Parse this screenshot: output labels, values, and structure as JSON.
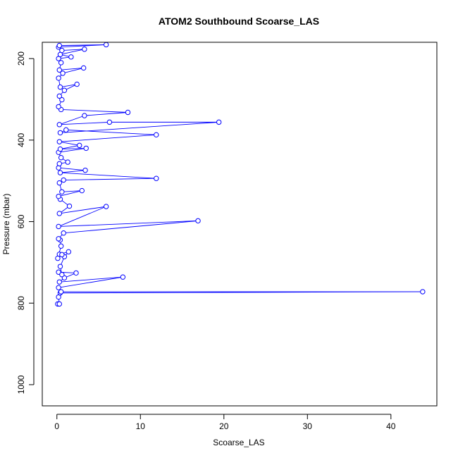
{
  "chart_data": {
    "type": "scatter",
    "title": "ATOM2 Southbound Scoarse_LAS",
    "xlabel": "Scoarse_LAS",
    "ylabel": "Pressure (mbar)",
    "xlim": [
      -1.75,
      45.5
    ],
    "ylim": [
      1052,
      160
    ],
    "y_reversed": true,
    "x_ticks": [
      0,
      10,
      20,
      30,
      40
    ],
    "x_tick_labels": [
      "0",
      "10",
      "20",
      "30",
      "40"
    ],
    "y_ticks": [
      200,
      400,
      600,
      800,
      1000
    ],
    "y_tick_labels": [
      "200",
      "400",
      "600",
      "800",
      "1000"
    ],
    "grid": false,
    "series": [
      {
        "color": "#0000ff",
        "marker": "open-circle",
        "connected": true,
        "points": [
          [
            0.1,
            802
          ],
          [
            0.3,
            802
          ],
          [
            0.2,
            785
          ],
          [
            0.4,
            775
          ],
          [
            43.8,
            772
          ],
          [
            0.5,
            772
          ],
          [
            0.2,
            762
          ],
          [
            7.9,
            736
          ],
          [
            0.3,
            748
          ],
          [
            0.9,
            738
          ],
          [
            2.3,
            726
          ],
          [
            0.2,
            724
          ],
          [
            0.6,
            730
          ],
          [
            0.4,
            710
          ],
          [
            0.9,
            686
          ],
          [
            1.4,
            674
          ],
          [
            0.3,
            680
          ],
          [
            0.6,
            681
          ],
          [
            0.1,
            690
          ],
          [
            0.5,
            660
          ],
          [
            0.4,
            645
          ],
          [
            0.2,
            642
          ],
          [
            0.8,
            628
          ],
          [
            16.9,
            598
          ],
          [
            0.2,
            612
          ],
          [
            5.9,
            563
          ],
          [
            0.3,
            580
          ],
          [
            1.5,
            562
          ],
          [
            0.4,
            545
          ],
          [
            0.2,
            538
          ],
          [
            3.0,
            524
          ],
          [
            0.6,
            527
          ],
          [
            0.3,
            505
          ],
          [
            0.8,
            498
          ],
          [
            11.9,
            494
          ],
          [
            0.4,
            480
          ],
          [
            3.4,
            474
          ],
          [
            0.2,
            468
          ],
          [
            0.3,
            458
          ],
          [
            1.3,
            454
          ],
          [
            0.5,
            443
          ],
          [
            0.2,
            430
          ],
          [
            3.5,
            420
          ],
          [
            0.4,
            422
          ],
          [
            2.7,
            413
          ],
          [
            0.3,
            404
          ],
          [
            11.9,
            387
          ],
          [
            1.1,
            375
          ],
          [
            0.4,
            382
          ],
          [
            19.4,
            356
          ],
          [
            6.3,
            356
          ],
          [
            0.3,
            362
          ],
          [
            3.3,
            340
          ],
          [
            8.5,
            332
          ],
          [
            0.5,
            325
          ],
          [
            0.2,
            318
          ],
          [
            0.6,
            301
          ],
          [
            0.3,
            292
          ],
          [
            0.9,
            278
          ],
          [
            2.4,
            263
          ],
          [
            0.4,
            270
          ],
          [
            0.2,
            248
          ],
          [
            0.7,
            236
          ],
          [
            3.2,
            223
          ],
          [
            0.3,
            228
          ],
          [
            0.5,
            210
          ],
          [
            0.2,
            200
          ],
          [
            1.7,
            196
          ],
          [
            0.4,
            190
          ],
          [
            3.3,
            177
          ],
          [
            0.6,
            180
          ],
          [
            0.2,
            172
          ],
          [
            5.9,
            166
          ],
          [
            0.3,
            168
          ]
        ]
      }
    ]
  }
}
